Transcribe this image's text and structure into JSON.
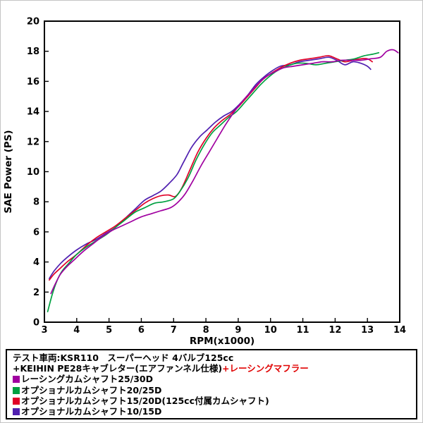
{
  "chart_data": {
    "type": "line",
    "title": "",
    "xlabel": "RPM(x1000)",
    "ylabel": "SAE Power (PS)",
    "xlim": [
      3,
      14
    ],
    "ylim": [
      0,
      20
    ],
    "xticks": [
      "3",
      "4",
      "5",
      "6",
      "7",
      "8",
      "9",
      "10",
      "11",
      "12",
      "13",
      "14"
    ],
    "yticks": [
      "0",
      "2",
      "4",
      "6",
      "8",
      "10",
      "12",
      "14",
      "16",
      "18",
      "20"
    ],
    "grid": false,
    "legend_position": "below",
    "series": [
      {
        "name": "レーシングカムシャフト25/30D",
        "color": "#a000a0",
        "points": [
          [
            3.2,
            1.9
          ],
          [
            3.35,
            2.6
          ],
          [
            3.5,
            3.2
          ],
          [
            3.7,
            3.7
          ],
          [
            3.9,
            4.1
          ],
          [
            4.2,
            4.7
          ],
          [
            4.5,
            5.2
          ],
          [
            4.8,
            5.7
          ],
          [
            5.1,
            6.1
          ],
          [
            5.4,
            6.4
          ],
          [
            5.7,
            6.7
          ],
          [
            6.0,
            7.0
          ],
          [
            6.3,
            7.2
          ],
          [
            6.6,
            7.4
          ],
          [
            6.9,
            7.6
          ],
          [
            7.1,
            7.9
          ],
          [
            7.35,
            8.5
          ],
          [
            7.6,
            9.4
          ],
          [
            7.85,
            10.4
          ],
          [
            8.1,
            11.3
          ],
          [
            8.35,
            12.2
          ],
          [
            8.6,
            13.1
          ],
          [
            8.85,
            13.9
          ],
          [
            9.1,
            14.6
          ],
          [
            9.35,
            15.2
          ],
          [
            9.6,
            15.8
          ],
          [
            9.85,
            16.3
          ],
          [
            10.1,
            16.6
          ],
          [
            10.4,
            16.9
          ],
          [
            10.7,
            17.0
          ],
          [
            11.0,
            17.1
          ],
          [
            11.3,
            17.2
          ],
          [
            11.6,
            17.3
          ],
          [
            11.9,
            17.3
          ],
          [
            12.2,
            17.4
          ],
          [
            12.5,
            17.4
          ],
          [
            12.8,
            17.4
          ],
          [
            13.1,
            17.5
          ],
          [
            13.4,
            17.6
          ],
          [
            13.6,
            18.0
          ],
          [
            13.8,
            18.1
          ],
          [
            13.95,
            17.9
          ]
        ]
      },
      {
        "name": "オプショナルカムシャフト20/25D",
        "color": "#00a040",
        "points": [
          [
            3.1,
            0.7
          ],
          [
            3.25,
            1.9
          ],
          [
            3.4,
            2.8
          ],
          [
            3.55,
            3.4
          ],
          [
            3.75,
            3.9
          ],
          [
            4.0,
            4.5
          ],
          [
            4.3,
            5.0
          ],
          [
            4.6,
            5.4
          ],
          [
            4.9,
            5.8
          ],
          [
            5.2,
            6.3
          ],
          [
            5.5,
            6.8
          ],
          [
            5.8,
            7.3
          ],
          [
            6.1,
            7.6
          ],
          [
            6.4,
            7.9
          ],
          [
            6.7,
            8.0
          ],
          [
            7.0,
            8.2
          ],
          [
            7.2,
            8.7
          ],
          [
            7.45,
            9.6
          ],
          [
            7.7,
            10.8
          ],
          [
            7.95,
            11.8
          ],
          [
            8.2,
            12.6
          ],
          [
            8.45,
            13.1
          ],
          [
            8.7,
            13.6
          ],
          [
            8.95,
            14.0
          ],
          [
            9.2,
            14.6
          ],
          [
            9.45,
            15.2
          ],
          [
            9.7,
            15.8
          ],
          [
            9.95,
            16.3
          ],
          [
            10.2,
            16.7
          ],
          [
            10.5,
            17.0
          ],
          [
            10.8,
            17.2
          ],
          [
            11.1,
            17.2
          ],
          [
            11.4,
            17.1
          ],
          [
            11.7,
            17.2
          ],
          [
            12.0,
            17.3
          ],
          [
            12.3,
            17.4
          ],
          [
            12.6,
            17.5
          ],
          [
            12.9,
            17.7
          ],
          [
            13.15,
            17.8
          ],
          [
            13.35,
            17.9
          ]
        ]
      },
      {
        "name": "オプショナルカムシャフト15/20D(125cc付属カムシャフト)",
        "color": "#e00028",
        "points": [
          [
            3.15,
            2.8
          ],
          [
            3.3,
            3.2
          ],
          [
            3.5,
            3.6
          ],
          [
            3.7,
            4.0
          ],
          [
            4.0,
            4.5
          ],
          [
            4.3,
            5.1
          ],
          [
            4.6,
            5.6
          ],
          [
            4.9,
            6.0
          ],
          [
            5.2,
            6.4
          ],
          [
            5.5,
            6.9
          ],
          [
            5.8,
            7.4
          ],
          [
            6.1,
            7.9
          ],
          [
            6.35,
            8.2
          ],
          [
            6.6,
            8.4
          ],
          [
            6.85,
            8.45
          ],
          [
            7.05,
            8.35
          ],
          [
            7.25,
            8.9
          ],
          [
            7.5,
            10.1
          ],
          [
            7.75,
            11.3
          ],
          [
            8.0,
            12.2
          ],
          [
            8.25,
            12.9
          ],
          [
            8.5,
            13.4
          ],
          [
            8.75,
            13.8
          ],
          [
            9.0,
            14.3
          ],
          [
            9.25,
            14.9
          ],
          [
            9.5,
            15.5
          ],
          [
            9.75,
            16.1
          ],
          [
            10.0,
            16.5
          ],
          [
            10.3,
            16.9
          ],
          [
            10.6,
            17.2
          ],
          [
            10.9,
            17.4
          ],
          [
            11.2,
            17.5
          ],
          [
            11.5,
            17.6
          ],
          [
            11.8,
            17.7
          ],
          [
            12.05,
            17.5
          ],
          [
            12.3,
            17.3
          ],
          [
            12.55,
            17.4
          ],
          [
            12.8,
            17.5
          ],
          [
            13.0,
            17.5
          ],
          [
            13.15,
            17.3
          ]
        ]
      },
      {
        "name": "オプショナルカムシャフト10/15D",
        "color": "#5020b0",
        "points": [
          [
            3.15,
            2.9
          ],
          [
            3.3,
            3.4
          ],
          [
            3.5,
            3.9
          ],
          [
            3.7,
            4.3
          ],
          [
            4.0,
            4.8
          ],
          [
            4.3,
            5.2
          ],
          [
            4.6,
            5.5
          ],
          [
            4.9,
            5.9
          ],
          [
            5.2,
            6.3
          ],
          [
            5.5,
            6.9
          ],
          [
            5.8,
            7.5
          ],
          [
            6.1,
            8.1
          ],
          [
            6.35,
            8.4
          ],
          [
            6.6,
            8.7
          ],
          [
            6.85,
            9.2
          ],
          [
            7.1,
            9.8
          ],
          [
            7.3,
            10.6
          ],
          [
            7.55,
            11.6
          ],
          [
            7.8,
            12.3
          ],
          [
            8.05,
            12.8
          ],
          [
            8.3,
            13.3
          ],
          [
            8.55,
            13.7
          ],
          [
            8.8,
            14.0
          ],
          [
            9.05,
            14.5
          ],
          [
            9.3,
            15.1
          ],
          [
            9.55,
            15.8
          ],
          [
            9.8,
            16.3
          ],
          [
            10.05,
            16.7
          ],
          [
            10.3,
            17.0
          ],
          [
            10.6,
            17.1
          ],
          [
            10.9,
            17.3
          ],
          [
            11.2,
            17.4
          ],
          [
            11.5,
            17.5
          ],
          [
            11.8,
            17.6
          ],
          [
            12.05,
            17.4
          ],
          [
            12.3,
            17.1
          ],
          [
            12.55,
            17.3
          ],
          [
            12.8,
            17.2
          ],
          [
            13.0,
            17.0
          ],
          [
            13.1,
            16.8
          ]
        ]
      }
    ]
  },
  "legend": {
    "line1": "テスト車両:KSR110　スーパーヘッド 4バルブ125cc",
    "line2_black": "+KEIHIN PE28キャブレター(エアファンネル仕様)",
    "line2_red": "+レーシングマフラー",
    "red_text_color": "#e00000"
  }
}
